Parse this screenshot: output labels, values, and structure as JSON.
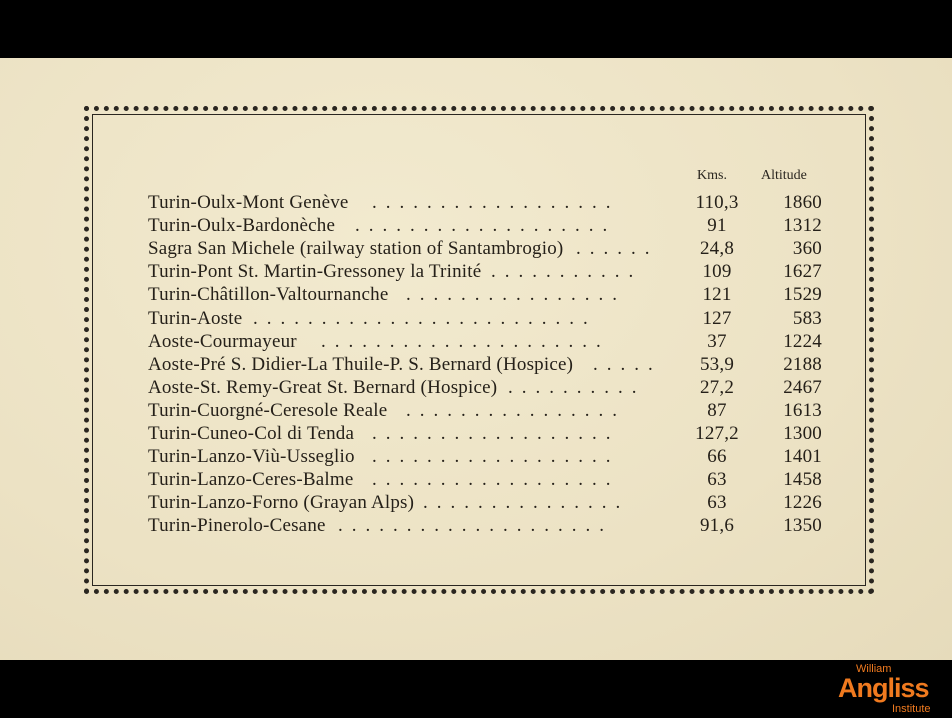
{
  "table": {
    "headers": {
      "kms": "Kms.",
      "altitude": "Altitude"
    },
    "rows": [
      {
        "route": "Turin-Oulx-Mont Genève",
        "kms": "110,3",
        "altitude": "1860"
      },
      {
        "route": "Turin-Oulx-Bardonèche",
        "kms": "91",
        "altitude": "1312"
      },
      {
        "route": "Sagra San Michele (railway station of Santambrogio)",
        "kms": "24,8",
        "altitude": "360"
      },
      {
        "route": "Turin-Pont St. Martin-Gressoney la Trinité",
        "kms": "109",
        "altitude": "1627"
      },
      {
        "route": "Turin-Châtillon-Valtournanche",
        "kms": "121",
        "altitude": "1529"
      },
      {
        "route": "Turin-Aoste",
        "kms": "127",
        "altitude": "583"
      },
      {
        "route": "Aoste-Courmayeur",
        "kms": "37",
        "altitude": "1224"
      },
      {
        "route": "Aoste-Pré S. Didier-La Thuile-P. S. Bernard (Hospice)",
        "kms": "53,9",
        "altitude": "2188"
      },
      {
        "route": "Aoste-St. Remy-Great St. Bernard (Hospice)",
        "kms": "27,2",
        "altitude": "2467"
      },
      {
        "route": "Turin-Cuorgné-Ceresole Reale",
        "kms": "87",
        "altitude": "1613"
      },
      {
        "route": "Turin-Cuneo-Col di Tenda",
        "kms": "127,2",
        "altitude": "1300"
      },
      {
        "route": "Turin-Lanzo-Viù-Usseglio",
        "kms": "66",
        "altitude": "1401"
      },
      {
        "route": "Turin-Lanzo-Ceres-Balme",
        "kms": "63",
        "altitude": "1458"
      },
      {
        "route": "Turin-Lanzo-Forno (Grayan Alps)",
        "kms": "63",
        "altitude": "1226"
      },
      {
        "route": "Turin-Pinerolo-Cesane",
        "kms": "91,6",
        "altitude": "1350"
      }
    ]
  },
  "logo": {
    "line1": "William",
    "line2": "Angliss",
    "line3": "Institute",
    "color": "#f07a1f"
  }
}
